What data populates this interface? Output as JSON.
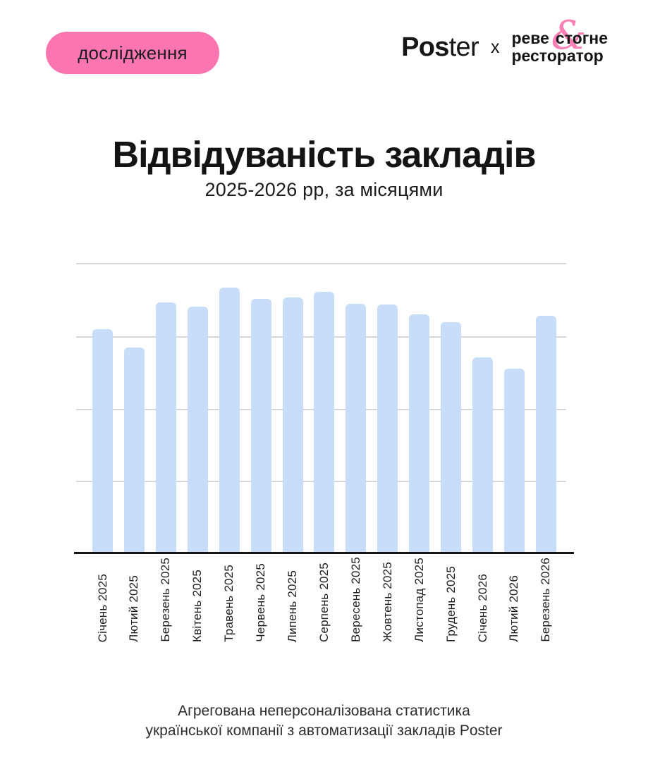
{
  "page": {
    "background": "#FFFFFF"
  },
  "badge": {
    "label": "дослідження",
    "bg_color": "#FB76B0",
    "text_color": "#1C1C1E"
  },
  "logo": {
    "poster_bold": "Pos",
    "poster_light": "ter",
    "separator": "x",
    "partner_line1_left": "реве",
    "partner_line1_right": "стогне",
    "partner_line2": "ресторатор",
    "partner_ampersand": "&",
    "ampersand_color": "#F980B6"
  },
  "header": {
    "title": "Відвідуваність закладів",
    "subtitle": "2025-2026 рр, за місяцями"
  },
  "footer": {
    "line1": "Агрегована неперсоналізована статистика",
    "line2": "української компанії з автоматизації закладів Poster"
  },
  "chart_data": {
    "type": "bar",
    "title": "Відвідуваність закладів",
    "subtitle": "2025-2026 рр, за місяцями",
    "categories": [
      "Січень 2025",
      "Лютий 2025",
      "Березень 2025",
      "Квітень 2025",
      "Травень 2025",
      "Червень 2025",
      "Липень 2025",
      "Серпень 2025",
      "Вересень 2025",
      "Жовтень 2025",
      "Листопад 2025",
      "Грудень 2025",
      "Січень 2026",
      "Лютий 2026",
      "Березень 2026"
    ],
    "values_pct_of_axis_max": [
      77.1,
      70.8,
      86.4,
      84.9,
      91.5,
      87.6,
      88.1,
      90.0,
      85.9,
      85.6,
      82.2,
      79.6,
      67.4,
      63.5,
      81.7
    ],
    "xlabel": "",
    "ylabel": "",
    "y_axis": {
      "tick_labels_visible": false,
      "axis_max": 100,
      "gridline_count": 4
    },
    "legend": "none",
    "grid": "horizontal",
    "bar_color": "#C7DDF8",
    "gridline_color": "#D7D7D7",
    "axis_color": "#161616",
    "x_label_rotation_deg": -90
  }
}
